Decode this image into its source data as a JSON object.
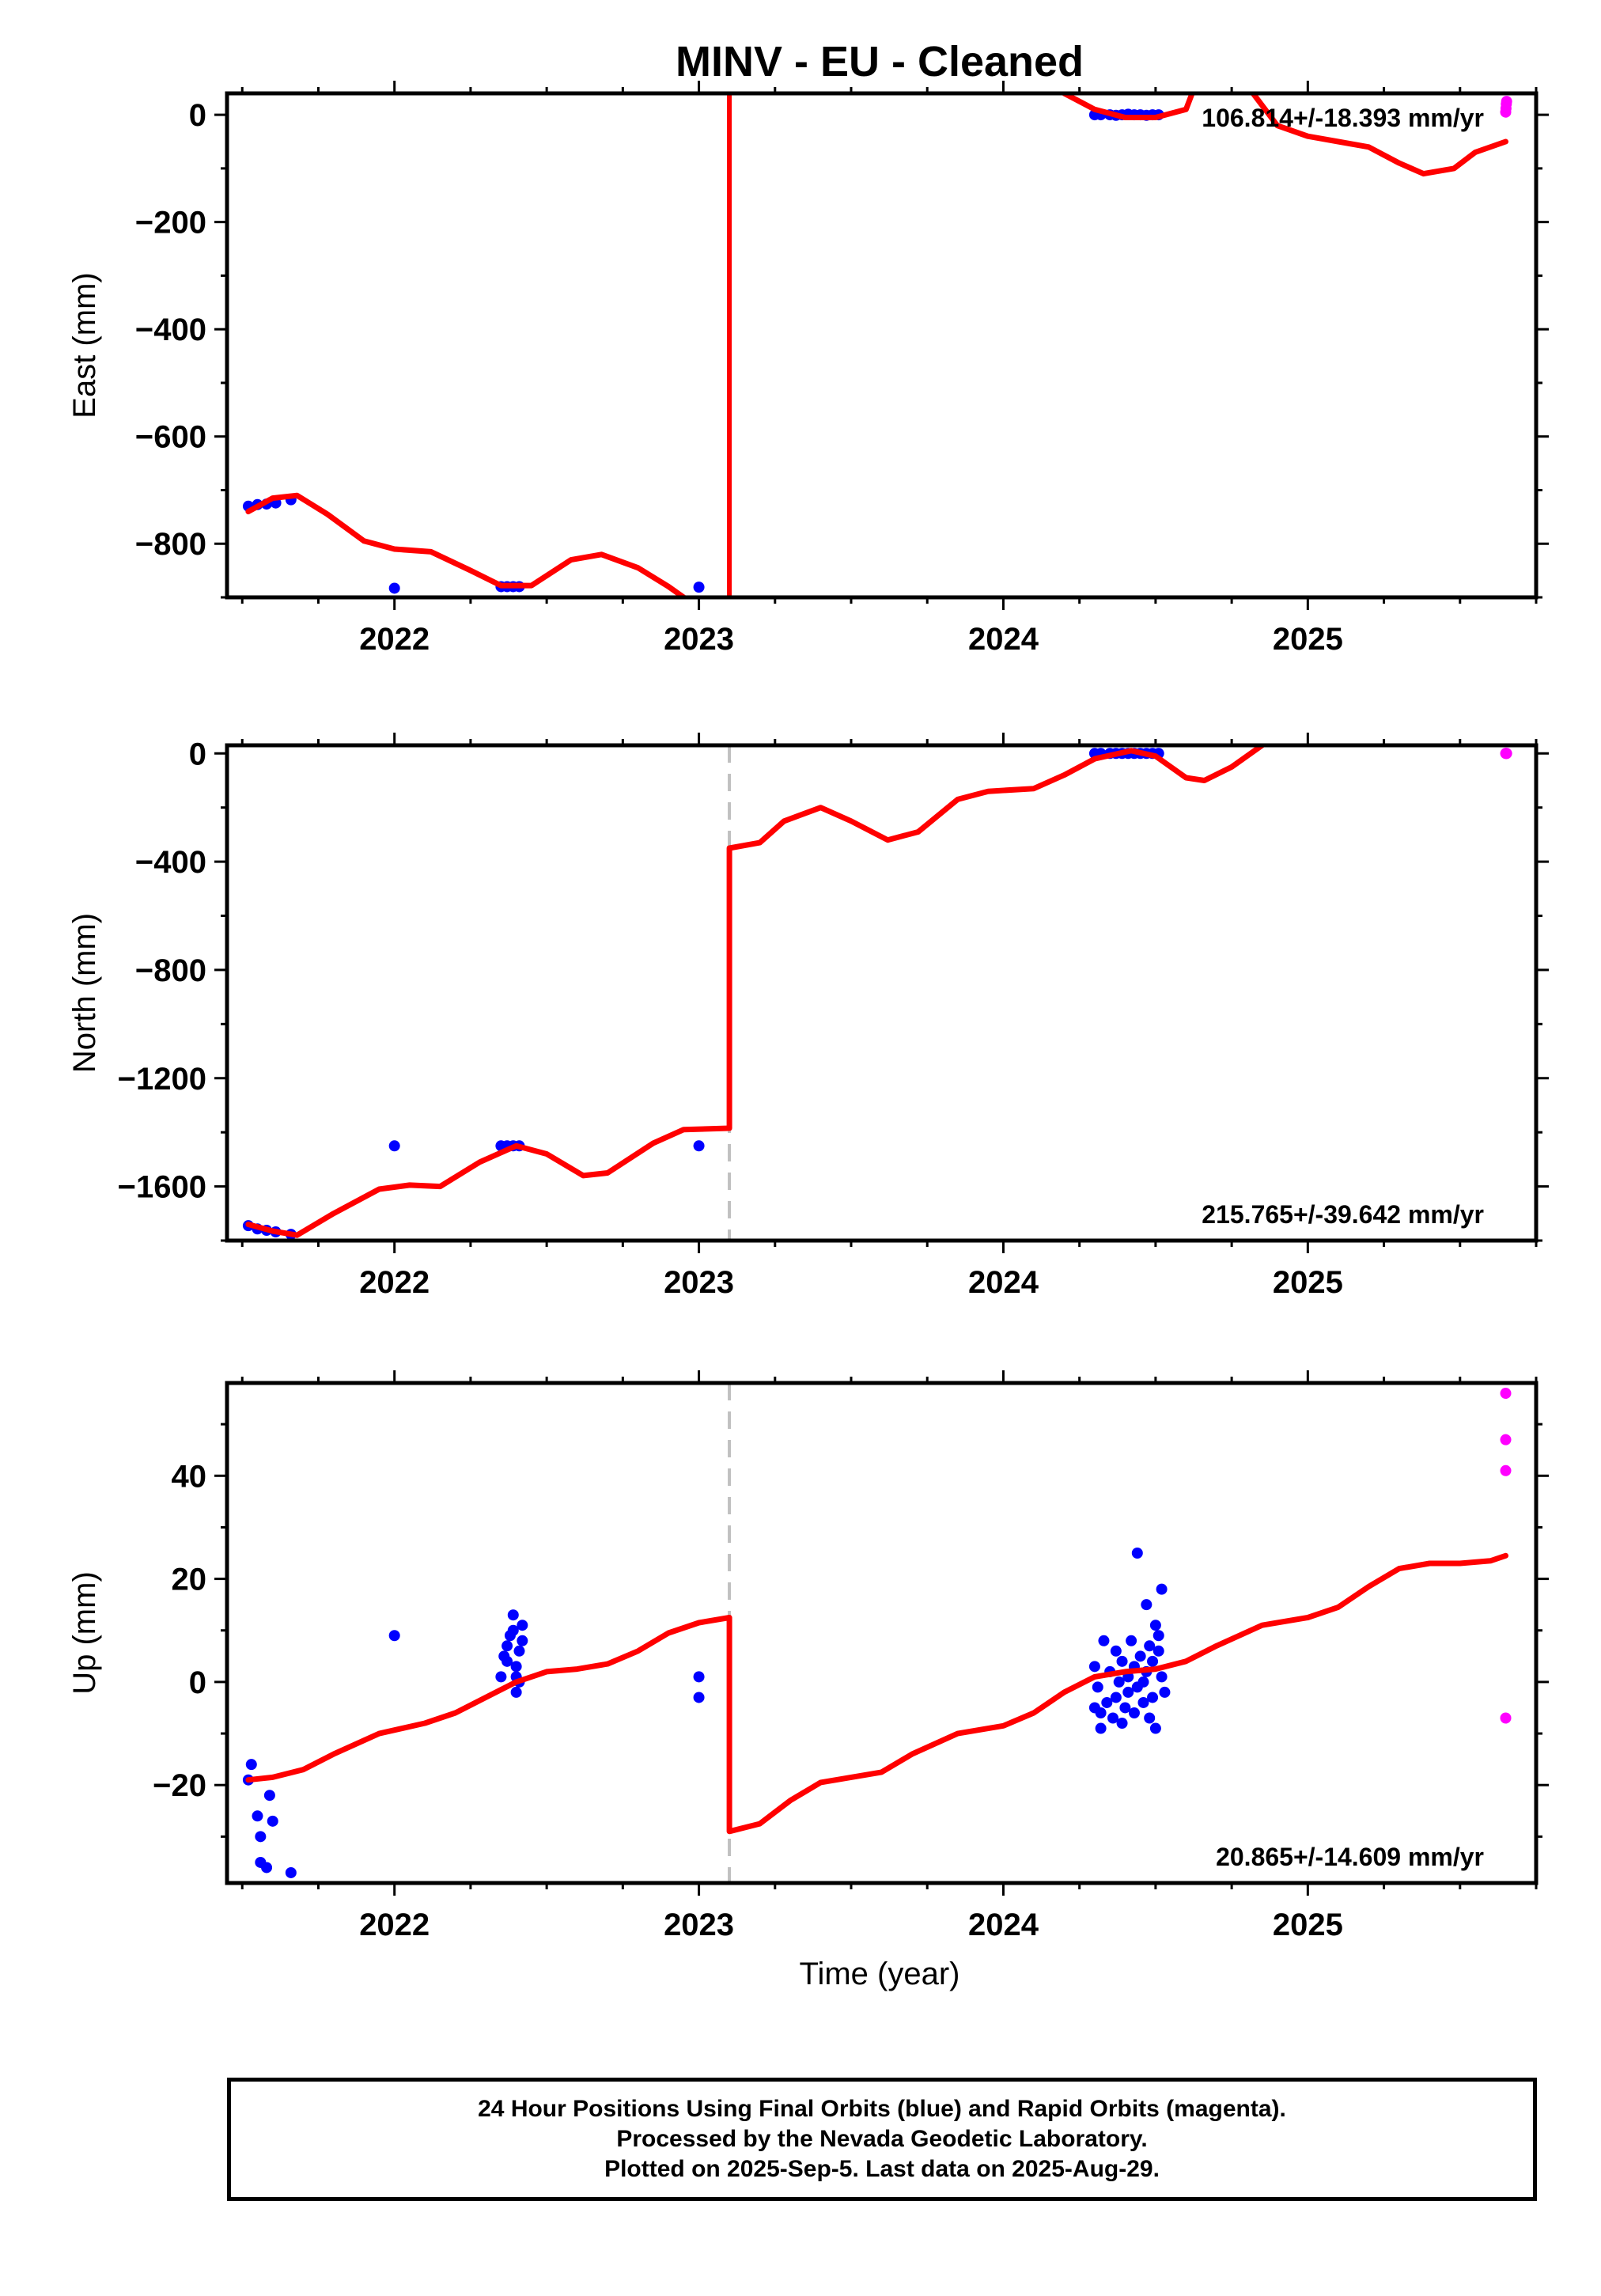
{
  "title": "MINV  - EU - Cleaned",
  "xlabel": "Time (year)",
  "footer": [
    "24 Hour Positions Using Final Orbits (blue) and Rapid Orbits (magenta).",
    "Processed by the Nevada Geodetic Laboratory.",
    "Plotted on 2025-Sep-5. Last data on 2025-Aug-29."
  ],
  "colors": {
    "final": "#0000ff",
    "rapid": "#ff00ff",
    "model": "#ff0000",
    "offset": "#c0c0c0"
  },
  "chart_data": [
    {
      "type": "scatter",
      "ylabel": "East (mm)",
      "rate_label": "106.814+/-18.393 mm/yr",
      "xlim": [
        2021.45,
        2025.75
      ],
      "ylim": [
        -900,
        40
      ],
      "xticks": [
        2022,
        2023,
        2024,
        2025
      ],
      "yticks": [
        0,
        -200,
        -400,
        -600,
        -800
      ],
      "offset_epoch": 2023.1,
      "model_segments": [
        [
          [
            2021.52,
            -740
          ],
          [
            2021.6,
            -715
          ],
          [
            2021.68,
            -710
          ],
          [
            2021.78,
            -745
          ],
          [
            2021.9,
            -795
          ],
          [
            2022.0,
            -810
          ],
          [
            2022.12,
            -815
          ],
          [
            2022.25,
            -850
          ],
          [
            2022.35,
            -878
          ],
          [
            2022.45,
            -878
          ],
          [
            2022.58,
            -830
          ],
          [
            2022.68,
            -820
          ],
          [
            2022.8,
            -845
          ],
          [
            2022.9,
            -880
          ],
          [
            2022.95,
            -900
          ]
        ],
        [
          [
            2024.2,
            40
          ],
          [
            2024.3,
            10
          ],
          [
            2024.4,
            -5
          ],
          [
            2024.5,
            -5
          ],
          [
            2024.6,
            10
          ],
          [
            2024.62,
            40
          ]
        ],
        [
          [
            2024.82,
            40
          ],
          [
            2024.9,
            -20
          ],
          [
            2025.0,
            -40
          ],
          [
            2025.1,
            -50
          ],
          [
            2025.2,
            -60
          ],
          [
            2025.3,
            -90
          ],
          [
            2025.38,
            -110
          ],
          [
            2025.48,
            -100
          ],
          [
            2025.55,
            -70
          ],
          [
            2025.65,
            -50
          ]
        ]
      ],
      "jump_x": 2023.1,
      "series": [
        {
          "name": "Final Orbits (blue)",
          "color": "#0000ff",
          "points": [
            [
              2021.52,
              -730
            ],
            [
              2021.55,
              -727
            ],
            [
              2021.58,
              -726
            ],
            [
              2021.61,
              -724
            ],
            [
              2021.66,
              -718
            ],
            [
              2022.0,
              -883
            ],
            [
              2022.35,
              -880
            ],
            [
              2022.37,
              -880
            ],
            [
              2022.39,
              -880
            ],
            [
              2022.41,
              -880
            ],
            [
              2023.0,
              -881
            ],
            [
              2024.3,
              0
            ],
            [
              2024.32,
              0
            ],
            [
              2024.35,
              0
            ],
            [
              2024.37,
              -1
            ],
            [
              2024.39,
              0
            ],
            [
              2024.41,
              1
            ],
            [
              2024.43,
              0
            ],
            [
              2024.45,
              0
            ],
            [
              2024.47,
              -1
            ],
            [
              2024.49,
              0
            ],
            [
              2024.51,
              0
            ]
          ]
        },
        {
          "name": "Rapid Orbits (magenta)",
          "color": "#ff00ff",
          "points": [
            [
              2025.65,
              5
            ],
            [
              2025.651,
              12
            ],
            [
              2025.652,
              20
            ],
            [
              2025.653,
              25
            ]
          ]
        }
      ]
    },
    {
      "type": "scatter",
      "ylabel": "North (mm)",
      "rate_label": "215.765+/-39.642 mm/yr",
      "xlim": [
        2021.45,
        2025.75
      ],
      "ylim": [
        -1800,
        30
      ],
      "xticks": [
        2022,
        2023,
        2024,
        2025
      ],
      "yticks": [
        0,
        -400,
        -800,
        -1200,
        -1600
      ],
      "offset_epoch": 2023.1,
      "model_segments": [
        [
          [
            2021.52,
            -1740
          ],
          [
            2021.6,
            -1765
          ],
          [
            2021.68,
            -1780
          ],
          [
            2021.8,
            -1700
          ],
          [
            2021.95,
            -1610
          ],
          [
            2022.05,
            -1595
          ],
          [
            2022.15,
            -1600
          ],
          [
            2022.28,
            -1510
          ],
          [
            2022.4,
            -1450
          ],
          [
            2022.5,
            -1480
          ],
          [
            2022.62,
            -1560
          ],
          [
            2022.7,
            -1550
          ],
          [
            2022.85,
            -1440
          ],
          [
            2022.95,
            -1390
          ],
          [
            2023.1,
            -1385
          ],
          [
            2023.1,
            -350
          ],
          [
            2023.2,
            -330
          ],
          [
            2023.28,
            -250
          ],
          [
            2023.4,
            -200
          ],
          [
            2023.5,
            -250
          ],
          [
            2023.62,
            -320
          ],
          [
            2023.72,
            -290
          ],
          [
            2023.85,
            -170
          ],
          [
            2023.95,
            -140
          ],
          [
            2024.1,
            -130
          ],
          [
            2024.2,
            -80
          ],
          [
            2024.3,
            -20
          ],
          [
            2024.42,
            10
          ],
          [
            2024.5,
            -10
          ],
          [
            2024.6,
            -90
          ],
          [
            2024.66,
            -100
          ],
          [
            2024.75,
            -50
          ],
          [
            2024.85,
            30
          ]
        ]
      ],
      "series": [
        {
          "name": "Final Orbits (blue)",
          "color": "#0000ff",
          "points": [
            [
              2021.52,
              -1745
            ],
            [
              2021.55,
              -1757
            ],
            [
              2021.58,
              -1762
            ],
            [
              2021.61,
              -1768
            ],
            [
              2021.66,
              -1777
            ],
            [
              2022.0,
              -1450
            ],
            [
              2022.35,
              -1450
            ],
            [
              2022.37,
              -1450
            ],
            [
              2022.39,
              -1450
            ],
            [
              2022.41,
              -1450
            ],
            [
              2023.0,
              -1450
            ],
            [
              2024.3,
              0
            ],
            [
              2024.32,
              0
            ],
            [
              2024.35,
              0
            ],
            [
              2024.37,
              0
            ],
            [
              2024.39,
              0
            ],
            [
              2024.41,
              0
            ],
            [
              2024.43,
              0
            ],
            [
              2024.45,
              0
            ],
            [
              2024.47,
              0
            ],
            [
              2024.49,
              0
            ],
            [
              2024.51,
              0
            ]
          ]
        },
        {
          "name": "Rapid Orbits (magenta)",
          "color": "#ff00ff",
          "points": [
            [
              2025.65,
              0
            ],
            [
              2025.651,
              0
            ],
            [
              2025.652,
              0
            ],
            [
              2025.653,
              0
            ]
          ]
        }
      ]
    },
    {
      "type": "scatter",
      "ylabel": "Up (mm)",
      "rate_label": "20.865+/-14.609 mm/yr",
      "xlim": [
        2021.45,
        2025.75
      ],
      "ylim": [
        -39,
        58
      ],
      "xticks": [
        2022,
        2023,
        2024,
        2025
      ],
      "yticks": [
        40,
        20,
        0,
        -20
      ],
      "offset_epoch": 2023.1,
      "model_segments": [
        [
          [
            2021.52,
            -19
          ],
          [
            2021.6,
            -18.5
          ],
          [
            2021.7,
            -17
          ],
          [
            2021.8,
            -14
          ],
          [
            2021.95,
            -10
          ],
          [
            2022.1,
            -8
          ],
          [
            2022.2,
            -6
          ],
          [
            2022.3,
            -3
          ],
          [
            2022.4,
            0
          ],
          [
            2022.5,
            2
          ],
          [
            2022.6,
            2.5
          ],
          [
            2022.7,
            3.5
          ],
          [
            2022.8,
            6
          ],
          [
            2022.9,
            9.5
          ],
          [
            2023.0,
            11.5
          ],
          [
            2023.1,
            12.5
          ],
          [
            2023.1,
            -29
          ],
          [
            2023.2,
            -27.5
          ],
          [
            2023.3,
            -23
          ],
          [
            2023.4,
            -19.5
          ],
          [
            2023.5,
            -18.5
          ],
          [
            2023.6,
            -17.5
          ],
          [
            2023.7,
            -14
          ],
          [
            2023.85,
            -10
          ],
          [
            2024.0,
            -8.5
          ],
          [
            2024.1,
            -6
          ],
          [
            2024.2,
            -2
          ],
          [
            2024.3,
            1
          ],
          [
            2024.4,
            2
          ],
          [
            2024.5,
            2.5
          ],
          [
            2024.6,
            4
          ],
          [
            2024.7,
            7
          ],
          [
            2024.85,
            11
          ],
          [
            2025.0,
            12.5
          ],
          [
            2025.1,
            14.5
          ],
          [
            2025.2,
            18.5
          ],
          [
            2025.3,
            22
          ],
          [
            2025.4,
            23
          ],
          [
            2025.5,
            23
          ],
          [
            2025.6,
            23.5
          ],
          [
            2025.65,
            24.5
          ]
        ]
      ],
      "series": [
        {
          "name": "Final Orbits (blue)",
          "color": "#0000ff",
          "points": [
            [
              2021.52,
              -19
            ],
            [
              2021.53,
              -16
            ],
            [
              2021.55,
              -26
            ],
            [
              2021.56,
              -30
            ],
            [
              2021.56,
              -35
            ],
            [
              2021.58,
              -36
            ],
            [
              2021.59,
              -22
            ],
            [
              2021.6,
              -27
            ],
            [
              2021.66,
              -37
            ],
            [
              2022.0,
              9
            ],
            [
              2022.35,
              1
            ],
            [
              2022.36,
              5
            ],
            [
              2022.37,
              7
            ],
            [
              2022.37,
              4
            ],
            [
              2022.38,
              9
            ],
            [
              2022.39,
              10
            ],
            [
              2022.39,
              13
            ],
            [
              2022.4,
              3
            ],
            [
              2022.41,
              6
            ],
            [
              2022.4,
              -2
            ],
            [
              2022.41,
              0
            ],
            [
              2022.42,
              11
            ],
            [
              2022.42,
              8
            ],
            [
              2022.4,
              1
            ],
            [
              2023.0,
              1
            ],
            [
              2023.0,
              -3
            ],
            [
              2024.3,
              3
            ],
            [
              2024.3,
              -5
            ],
            [
              2024.31,
              -1
            ],
            [
              2024.32,
              -6
            ],
            [
              2024.32,
              -9
            ],
            [
              2024.33,
              8
            ],
            [
              2024.34,
              -4
            ],
            [
              2024.35,
              2
            ],
            [
              2024.36,
              -7
            ],
            [
              2024.37,
              6
            ],
            [
              2024.37,
              -3
            ],
            [
              2024.38,
              0
            ],
            [
              2024.39,
              -8
            ],
            [
              2024.39,
              4
            ],
            [
              2024.4,
              -5
            ],
            [
              2024.41,
              1
            ],
            [
              2024.41,
              -2
            ],
            [
              2024.42,
              8
            ],
            [
              2024.43,
              -6
            ],
            [
              2024.43,
              3
            ],
            [
              2024.44,
              -1
            ],
            [
              2024.44,
              25
            ],
            [
              2024.45,
              5
            ],
            [
              2024.46,
              -4
            ],
            [
              2024.46,
              0
            ],
            [
              2024.47,
              15
            ],
            [
              2024.47,
              2
            ],
            [
              2024.48,
              -7
            ],
            [
              2024.48,
              7
            ],
            [
              2024.49,
              4
            ],
            [
              2024.49,
              -3
            ],
            [
              2024.5,
              11
            ],
            [
              2024.5,
              -9
            ],
            [
              2024.51,
              9
            ],
            [
              2024.51,
              6
            ],
            [
              2024.52,
              18
            ],
            [
              2024.52,
              1
            ],
            [
              2024.53,
              -2
            ]
          ]
        },
        {
          "name": "Rapid Orbits (magenta)",
          "color": "#ff00ff",
          "points": [
            [
              2025.65,
              56
            ],
            [
              2025.65,
              47
            ],
            [
              2025.65,
              41
            ],
            [
              2025.65,
              -7
            ]
          ]
        }
      ]
    }
  ]
}
